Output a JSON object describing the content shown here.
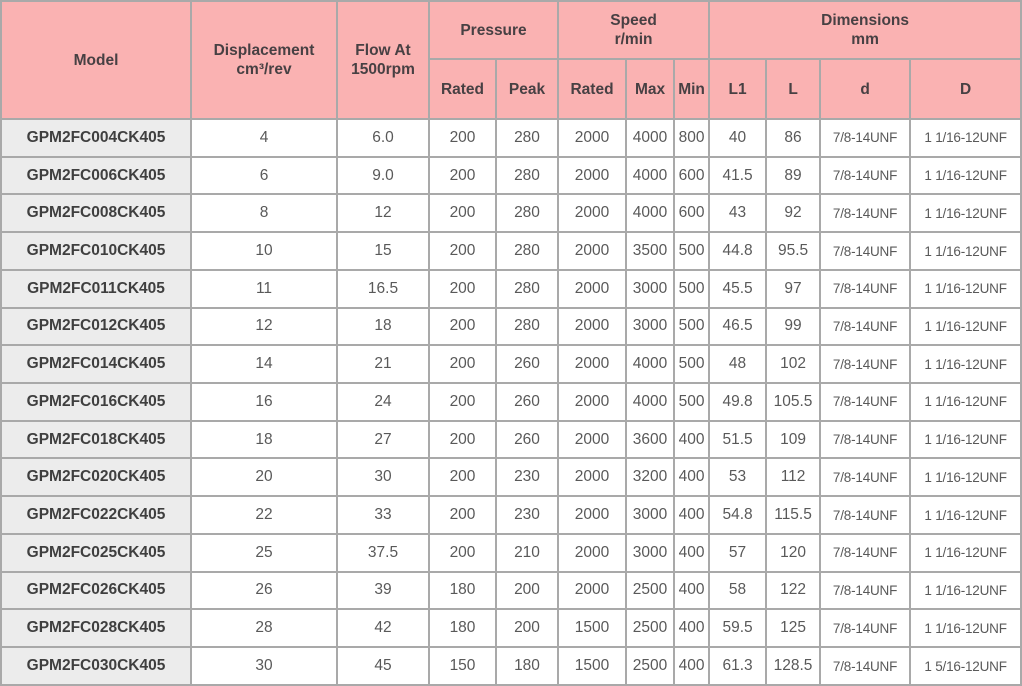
{
  "table": {
    "title_semantic": "gear-pump-specification-table",
    "colors": {
      "header_bg": "#fab2b2",
      "model_col_bg": "#ececec",
      "row_bg": "#ffffff",
      "grid": "#a9a9a9",
      "header_text": "#474043",
      "model_text": "#3f3f3f",
      "data_text": "#595959"
    },
    "header": {
      "top_row": [
        {
          "id": "model",
          "lines": [
            "Model"
          ],
          "rowspan": 2,
          "colspan": 1
        },
        {
          "id": "displacement",
          "lines": [
            "Displacement",
            "cm³/rev"
          ],
          "rowspan": 2,
          "colspan": 1
        },
        {
          "id": "flow",
          "lines": [
            "Flow At",
            "1500rpm"
          ],
          "rowspan": 2,
          "colspan": 1
        },
        {
          "id": "pressure-group",
          "lines": [
            "Pressure"
          ],
          "rowspan": 1,
          "colspan": 2
        },
        {
          "id": "speed-group",
          "lines": [
            "Speed",
            "r/min"
          ],
          "rowspan": 1,
          "colspan": 3
        },
        {
          "id": "dimensions-group",
          "lines": [
            "Dimensions",
            "mm"
          ],
          "rowspan": 1,
          "colspan": 4
        }
      ],
      "sub_row": [
        {
          "id": "pressure-rated",
          "label": "Rated"
        },
        {
          "id": "pressure-peak",
          "label": "Peak"
        },
        {
          "id": "speed-rated",
          "label": "Rated"
        },
        {
          "id": "speed-max",
          "label": "Max"
        },
        {
          "id": "speed-min",
          "label": "Min"
        },
        {
          "id": "dim-l1",
          "label": "L1"
        },
        {
          "id": "dim-l",
          "label": "L"
        },
        {
          "id": "dim-d",
          "label": "d"
        },
        {
          "id": "dim-d-cap",
          "label": "D"
        }
      ],
      "value_column_ids": [
        "displacement",
        "flow",
        "pressure-rated",
        "pressure-peak",
        "speed-rated",
        "speed-max",
        "speed-min",
        "dim-l1",
        "dim-l",
        "dim-d",
        "dim-d-cap"
      ]
    },
    "rows": [
      {
        "model": "GPM2FC004CK405",
        "values": [
          "4",
          "6.0",
          "200",
          "280",
          "2000",
          "4000",
          "800",
          "40",
          "86",
          "7/8-14UNF",
          "1 1/16-12UNF"
        ]
      },
      {
        "model": "GPM2FC006CK405",
        "values": [
          "6",
          "9.0",
          "200",
          "280",
          "2000",
          "4000",
          "600",
          "41.5",
          "89",
          "7/8-14UNF",
          "1 1/16-12UNF"
        ]
      },
      {
        "model": "GPM2FC008CK405",
        "values": [
          "8",
          "12",
          "200",
          "280",
          "2000",
          "4000",
          "600",
          "43",
          "92",
          "7/8-14UNF",
          "1 1/16-12UNF"
        ]
      },
      {
        "model": "GPM2FC010CK405",
        "values": [
          "10",
          "15",
          "200",
          "280",
          "2000",
          "3500",
          "500",
          "44.8",
          "95.5",
          "7/8-14UNF",
          "1 1/16-12UNF"
        ]
      },
      {
        "model": "GPM2FC011CK405",
        "values": [
          "11",
          "16.5",
          "200",
          "280",
          "2000",
          "3000",
          "500",
          "45.5",
          "97",
          "7/8-14UNF",
          "1 1/16-12UNF"
        ]
      },
      {
        "model": "GPM2FC012CK405",
        "values": [
          "12",
          "18",
          "200",
          "280",
          "2000",
          "3000",
          "500",
          "46.5",
          "99",
          "7/8-14UNF",
          "1 1/16-12UNF"
        ]
      },
      {
        "model": "GPM2FC014CK405",
        "values": [
          "14",
          "21",
          "200",
          "260",
          "2000",
          "4000",
          "500",
          "48",
          "102",
          "7/8-14UNF",
          "1 1/16-12UNF"
        ]
      },
      {
        "model": "GPM2FC016CK405",
        "values": [
          "16",
          "24",
          "200",
          "260",
          "2000",
          "4000",
          "500",
          "49.8",
          "105.5",
          "7/8-14UNF",
          "1 1/16-12UNF"
        ]
      },
      {
        "model": "GPM2FC018CK405",
        "values": [
          "18",
          "27",
          "200",
          "260",
          "2000",
          "3600",
          "400",
          "51.5",
          "109",
          "7/8-14UNF",
          "1 1/16-12UNF"
        ]
      },
      {
        "model": "GPM2FC020CK405",
        "values": [
          "20",
          "30",
          "200",
          "230",
          "2000",
          "3200",
          "400",
          "53",
          "112",
          "7/8-14UNF",
          "1 1/16-12UNF"
        ]
      },
      {
        "model": "GPM2FC022CK405",
        "values": [
          "22",
          "33",
          "200",
          "230",
          "2000",
          "3000",
          "400",
          "54.8",
          "115.5",
          "7/8-14UNF",
          "1 1/16-12UNF"
        ]
      },
      {
        "model": "GPM2FC025CK405",
        "values": [
          "25",
          "37.5",
          "200",
          "210",
          "2000",
          "3000",
          "400",
          "57",
          "120",
          "7/8-14UNF",
          "1 1/16-12UNF"
        ]
      },
      {
        "model": "GPM2FC026CK405",
        "values": [
          "26",
          "39",
          "180",
          "200",
          "2000",
          "2500",
          "400",
          "58",
          "122",
          "7/8-14UNF",
          "1 1/16-12UNF"
        ]
      },
      {
        "model": "GPM2FC028CK405",
        "values": [
          "28",
          "42",
          "180",
          "200",
          "1500",
          "2500",
          "400",
          "59.5",
          "125",
          "7/8-14UNF",
          "1 1/16-12UNF"
        ]
      },
      {
        "model": "GPM2FC030CK405",
        "values": [
          "30",
          "45",
          "150",
          "180",
          "1500",
          "2500",
          "400",
          "61.3",
          "128.5",
          "7/8-14UNF",
          "1 5/16-12UNF"
        ]
      }
    ]
  }
}
